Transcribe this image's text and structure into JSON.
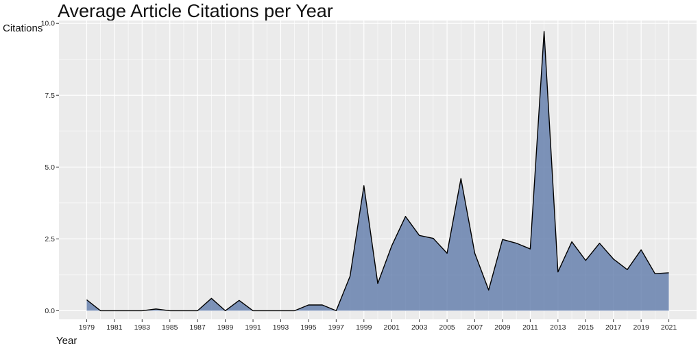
{
  "chart_data": {
    "type": "area",
    "title": "Average Article Citations per Year",
    "xlabel": "Year",
    "ylabel": "Citations",
    "x": [
      1979,
      1980,
      1981,
      1982,
      1983,
      1984,
      1985,
      1986,
      1987,
      1988,
      1989,
      1990,
      1991,
      1992,
      1993,
      1994,
      1995,
      1996,
      1997,
      1998,
      1999,
      2000,
      2001,
      2002,
      2003,
      2004,
      2005,
      2006,
      2007,
      2008,
      2009,
      2010,
      2011,
      2012,
      2013,
      2014,
      2015,
      2016,
      2017,
      2018,
      2019,
      2020,
      2021
    ],
    "values": [
      0.38,
      0,
      0,
      0,
      0,
      0.06,
      0,
      0,
      0,
      0.43,
      0,
      0.36,
      0,
      0,
      0,
      0,
      0.2,
      0.2,
      0,
      1.2,
      4.35,
      0.95,
      2.25,
      3.28,
      2.62,
      2.52,
      2.0,
      4.6,
      2.0,
      0.72,
      2.48,
      2.35,
      2.15,
      9.72,
      1.35,
      2.4,
      1.75,
      2.35,
      1.8,
      1.43,
      2.12,
      1.29,
      1.32
    ],
    "x_ticks": [
      "1979",
      "1981",
      "1983",
      "1985",
      "1987",
      "1989",
      "1991",
      "1993",
      "1995",
      "1997",
      "1999",
      "2001",
      "2003",
      "2005",
      "2007",
      "2009",
      "2011",
      "2013",
      "2015",
      "2017",
      "2019",
      "2021"
    ],
    "y_ticks": [
      "0.0",
      "2.5",
      "5.0",
      "7.5",
      "10.0"
    ],
    "xlim": [
      1977,
      2023
    ],
    "ylim": [
      -0.3,
      10.1
    ],
    "grid": true,
    "colors": {
      "fill": "#5b77a8",
      "line": "#000000",
      "panel": "#ebebeb",
      "gridline": "#ffffff"
    }
  }
}
